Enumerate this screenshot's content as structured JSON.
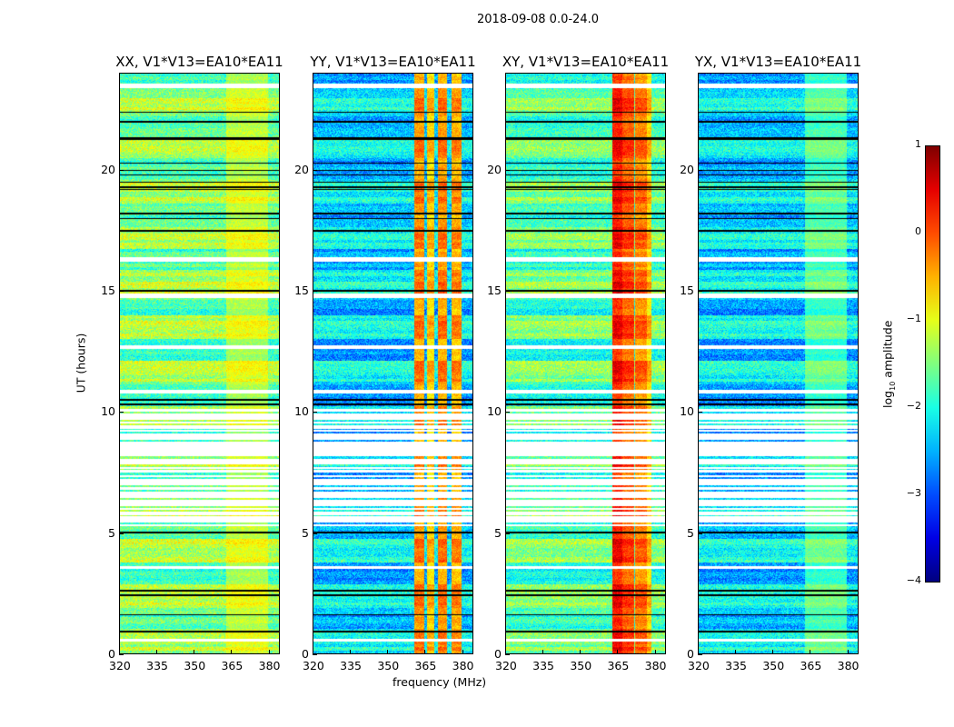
{
  "chart_data": {
    "type": "heatmap",
    "title": "2018-09-08 0.0-24.0",
    "xlabel": "frequency (MHz)",
    "ylabel": "UT (hours)",
    "xlim": [
      320,
      384.5
    ],
    "ylim": [
      0,
      24
    ],
    "xticks": [
      "320",
      "335",
      "350",
      "365",
      "380"
    ],
    "xtick_values": [
      320,
      335,
      350,
      365,
      380
    ],
    "yticks": [
      "0",
      "5",
      "10",
      "15",
      "20"
    ],
    "ytick_values": [
      0,
      5,
      10,
      15,
      20
    ],
    "colorbar": {
      "label_prefix": "log",
      "label_sub": "10",
      "label_suffix": " amplitude",
      "range": [
        -4,
        1
      ],
      "ticks": [
        "1",
        "0",
        "−1",
        "−2",
        "−3",
        "−4"
      ],
      "tick_values": [
        1,
        0,
        -1,
        -2,
        -3,
        -4
      ],
      "colormap": "jet"
    },
    "flagged_hours": [
      [
        0.5,
        0.6
      ],
      [
        3.5,
        3.62
      ],
      [
        5.45,
        5.6
      ],
      [
        8.2,
        8.7
      ],
      [
        10.75,
        10.9
      ],
      [
        12.6,
        12.75
      ],
      [
        14.7,
        14.9
      ],
      [
        16.2,
        16.4
      ],
      [
        23.4,
        23.6
      ],
      [
        5.7,
        5.85
      ],
      [
        6.55,
        6.7
      ],
      [
        7.0,
        7.2
      ],
      [
        7.5,
        7.6
      ],
      [
        7.85,
        8.0
      ],
      [
        8.9,
        9.1
      ],
      [
        9.3,
        9.4
      ],
      [
        9.7,
        9.85
      ],
      [
        6.2,
        6.3
      ]
    ],
    "black_hours": [
      0.9,
      1.6,
      2.4,
      2.6,
      5.0,
      10.3,
      10.5,
      15.0,
      17.5,
      18.0,
      18.2,
      19.2,
      19.3,
      19.5,
      19.8,
      20.0,
      20.3,
      21.3,
      21.35,
      22.0,
      22.4
    ],
    "panels": [
      {
        "title": "XX, V1*V13=EA10*EA11",
        "base_level": -1.5,
        "rfi": [
          {
            "f": [
              363,
              380
            ],
            "level": -1.1
          }
        ]
      },
      {
        "title": "YY, V1*V13=EA10*EA11",
        "base_level": -2.3,
        "rfi": [
          {
            "f": [
              361,
              365
            ],
            "level": -0.3
          },
          {
            "f": [
              366,
              369
            ],
            "level": -0.6
          },
          {
            "f": [
              370.5,
              374
            ],
            "level": -0.3
          },
          {
            "f": [
              376,
              380
            ],
            "level": -0.4
          }
        ]
      },
      {
        "title": "XY, V1*V13=EA10*EA11",
        "base_level": -1.7,
        "rfi": [
          {
            "f": [
              363,
              367
            ],
            "level": 0.3
          },
          {
            "f": [
              367,
              372
            ],
            "level": 0.0
          },
          {
            "f": [
              372.5,
              377
            ],
            "level": -0.2
          },
          {
            "f": [
              377,
              379
            ],
            "level": -0.6
          }
        ]
      },
      {
        "title": "YX, V1*V13=EA10*EA11",
        "base_level": -2.3,
        "rfi": [
          {
            "f": [
              363,
              380
            ],
            "level": -1.7
          }
        ]
      }
    ]
  }
}
